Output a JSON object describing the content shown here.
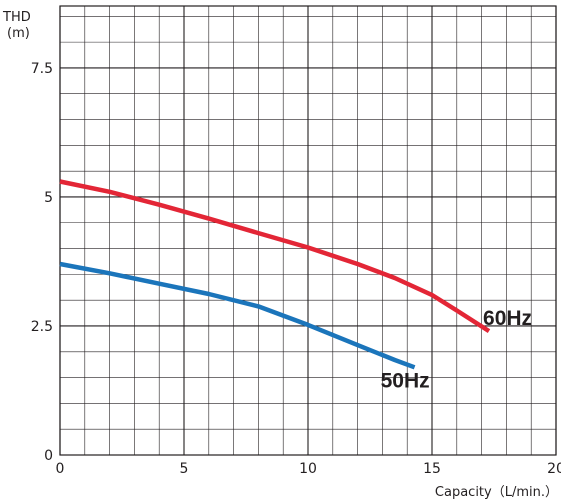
{
  "chart_data": {
    "type": "line",
    "ylabel_line1": "THD",
    "ylabel_line2": "(m)",
    "xlabel": "Capacity（L/min.）",
    "xlim": [
      0,
      20
    ],
    "ylim": [
      0,
      8.7
    ],
    "grid": true,
    "x_ticks": [
      {
        "value": 0,
        "label": "0"
      },
      {
        "value": 5,
        "label": "5"
      },
      {
        "value": 10,
        "label": "10"
      },
      {
        "value": 15,
        "label": "15"
      },
      {
        "value": 20,
        "label": "20"
      }
    ],
    "y_ticks": [
      {
        "value": 0,
        "label": "0"
      },
      {
        "value": 2.5,
        "label": "2.5"
      },
      {
        "value": 5,
        "label": "5"
      },
      {
        "value": 7.5,
        "label": "7.5"
      }
    ],
    "series": [
      {
        "name": "60Hz",
        "color": "#e32636",
        "x": [
          0,
          2,
          4,
          6,
          8,
          10,
          12,
          13.5,
          15,
          16,
          17.3
        ],
        "values": [
          5.3,
          5.1,
          4.85,
          4.58,
          4.3,
          4.02,
          3.7,
          3.43,
          3.1,
          2.8,
          2.4
        ]
      },
      {
        "name": "50Hz",
        "color": "#1b75bb",
        "x": [
          0,
          2,
          4,
          6,
          8,
          10,
          12,
          13.5,
          14.3
        ],
        "values": [
          3.7,
          3.52,
          3.32,
          3.12,
          2.88,
          2.52,
          2.13,
          1.84,
          1.7
        ]
      }
    ]
  }
}
